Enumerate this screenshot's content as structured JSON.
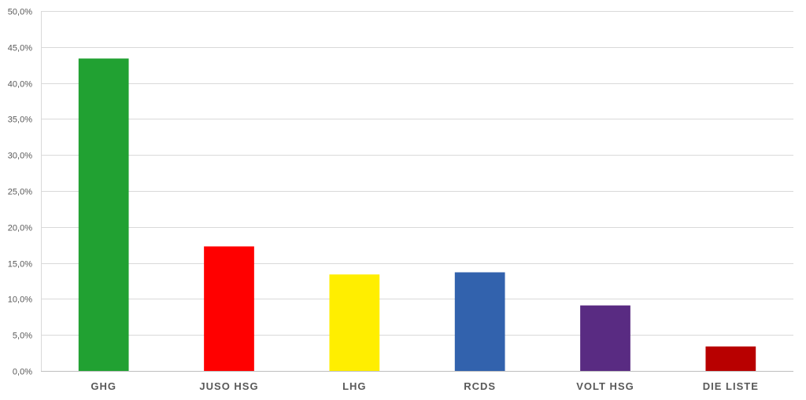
{
  "chart_data": {
    "type": "bar",
    "title": "",
    "xlabel": "",
    "ylabel": "",
    "categories": [
      "GHG",
      "JUSO HSG",
      "LHG",
      "RCDS",
      "VOLT HSG",
      "DIE LISTE"
    ],
    "values": [
      43.4,
      17.3,
      13.4,
      13.7,
      9.1,
      3.4
    ],
    "colors": [
      "#21a132",
      "#ff0000",
      "#ffee00",
      "#3262ad",
      "#592b82",
      "#b80000"
    ],
    "ylim": [
      0,
      50
    ],
    "yticks": [
      0,
      5,
      10,
      15,
      20,
      25,
      30,
      35,
      40,
      45,
      50
    ],
    "ytick_labels": [
      "0,0%",
      "5,0%",
      "10,0%",
      "15,0%",
      "20,0%",
      "25,0%",
      "30,0%",
      "35,0%",
      "40,0%",
      "45,0%",
      "50,0%"
    ],
    "grid": true,
    "legend": "none"
  }
}
